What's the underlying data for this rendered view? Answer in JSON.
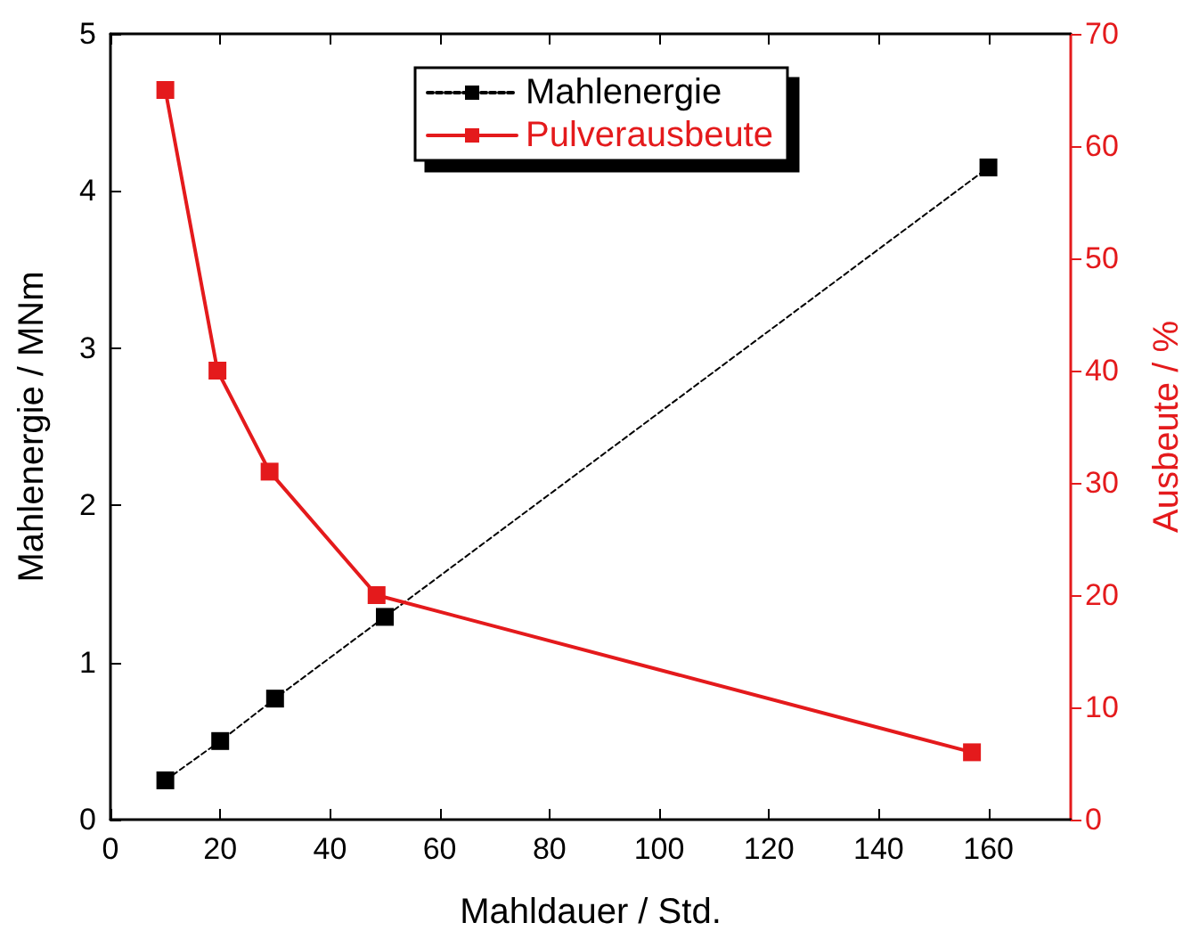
{
  "chart_data": {
    "type": "line",
    "xlabel": "Mahldauer / Std.",
    "ylabel": "Mahlenergie / MNm",
    "y2label": "Ausbeute / %",
    "xlim": [
      0,
      175
    ],
    "xticks": [
      0,
      20,
      40,
      60,
      80,
      100,
      120,
      140,
      160
    ],
    "ylim": [
      0,
      5
    ],
    "yticks": [
      0,
      1,
      2,
      3,
      4,
      5
    ],
    "y2lim": [
      0,
      70
    ],
    "y2ticks": [
      0,
      10,
      20,
      30,
      40,
      50,
      60,
      70
    ],
    "legend": "top",
    "grid": false,
    "marker": "square",
    "series": [
      {
        "name": "Mahlenergie",
        "color": "#000000",
        "line_style": "dashed",
        "x": [
          10,
          20,
          30,
          50,
          160
        ],
        "values": [
          0.25,
          0.5,
          0.77,
          1.29,
          4.15
        ]
      },
      {
        "name": "Pulverausbeute",
        "color": "#e41a1c",
        "line_style": "solid",
        "axis": "y2",
        "x": [
          10,
          19.5,
          29,
          48.5,
          157
        ],
        "values": [
          65,
          40,
          31,
          20,
          6
        ]
      }
    ]
  }
}
